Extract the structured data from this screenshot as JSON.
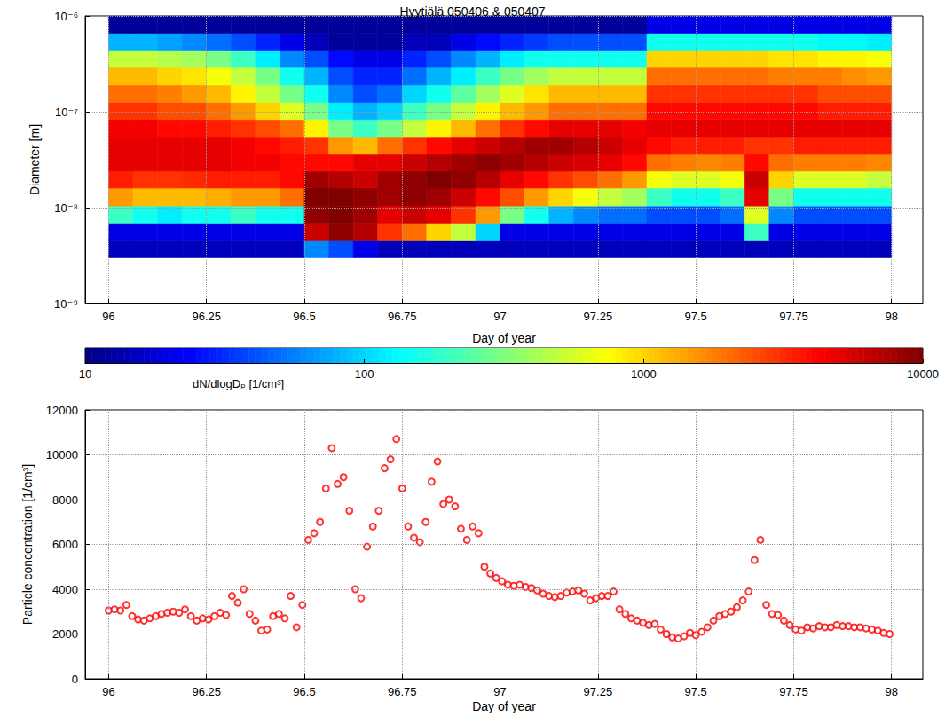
{
  "chart_data": [
    {
      "type": "heatmap",
      "title": "Hyytiälä 050406 & 050407",
      "xlabel": "Day of year",
      "ylabel": "Diameter [m]",
      "log": "y",
      "grid": true,
      "xlim": [
        95.94,
        98.08
      ],
      "xticks": [
        96,
        96.25,
        96.5,
        96.75,
        97,
        97.25,
        97.5,
        97.75,
        98
      ],
      "ylim": [
        1e-09,
        1e-06
      ],
      "yticks": [
        {
          "value": 1e-09,
          "label": "10⁻⁹"
        },
        {
          "value": 1e-08,
          "label": "10⁻⁸"
        },
        {
          "value": 1e-07,
          "label": "10⁻⁷"
        },
        {
          "value": 1e-06,
          "label": "10⁻⁶"
        }
      ],
      "x_edges": [
        96,
        96.0625,
        96.125,
        96.1875,
        96.25,
        96.3125,
        96.375,
        96.4375,
        96.5,
        96.5625,
        96.625,
        96.6875,
        96.75,
        96.8125,
        96.875,
        96.9375,
        97,
        97.0625,
        97.125,
        97.1875,
        97.25,
        97.3125,
        97.375,
        97.4375,
        97.5,
        97.5625,
        97.625,
        97.6875,
        97.75,
        97.8125,
        97.875,
        97.9375,
        98
      ],
      "y_edges": [
        3e-09,
        4.5e-09,
        6.9e-09,
        1.04e-08,
        1.6e-08,
        2.4e-08,
        3.6e-08,
        5.5e-08,
        8.3e-08,
        1.25e-07,
        1.9e-07,
        2.9e-07,
        4.4e-07,
        6.6e-07,
        1e-06
      ],
      "cells": [
        [
          15,
          15,
          15,
          15,
          15,
          15,
          15,
          15,
          60,
          40,
          20,
          15,
          15,
          15,
          15,
          15,
          15,
          15,
          15,
          15,
          15,
          15,
          15,
          15,
          15,
          15,
          15,
          15,
          15,
          15,
          15,
          15
        ],
        [
          20,
          20,
          20,
          20,
          20,
          20,
          20,
          20,
          6000,
          9000,
          7000,
          3000,
          2000,
          1000,
          500,
          100,
          20,
          20,
          20,
          20,
          20,
          20,
          20,
          20,
          20,
          20,
          200,
          20,
          20,
          20,
          20,
          20
        ],
        [
          200,
          150,
          120,
          150,
          150,
          200,
          150,
          150,
          9000,
          10000,
          8000,
          5000,
          6000,
          5000,
          3000,
          1500,
          300,
          150,
          80,
          60,
          50,
          50,
          40,
          40,
          40,
          50,
          600,
          60,
          40,
          40,
          40,
          40
        ],
        [
          1500,
          1200,
          1200,
          1200,
          1300,
          1500,
          1500,
          2000,
          10000,
          10000,
          9000,
          8000,
          9000,
          8000,
          6000,
          4000,
          2500,
          1500,
          1000,
          700,
          500,
          400,
          200,
          150,
          150,
          200,
          5000,
          300,
          150,
          150,
          150,
          150
        ],
        [
          3500,
          3000,
          3000,
          3200,
          3500,
          3500,
          3500,
          4000,
          8000,
          7000,
          6000,
          8000,
          9000,
          10000,
          9000,
          7000,
          5000,
          4000,
          3000,
          2500,
          2000,
          1500,
          700,
          600,
          600,
          700,
          6000,
          1000,
          600,
          600,
          600,
          500
        ],
        [
          5000,
          5000,
          5000,
          5000,
          5000,
          4500,
          4500,
          4000,
          4000,
          4000,
          5000,
          5000,
          6000,
          7000,
          8000,
          9000,
          8000,
          7000,
          6000,
          5500,
          5000,
          4000,
          2000,
          1800,
          1700,
          1800,
          4000,
          2000,
          1800,
          1800,
          1800,
          1700
        ],
        [
          5000,
          5000,
          5000,
          5000,
          5000,
          4500,
          4000,
          3500,
          3000,
          1500,
          1200,
          2000,
          3000,
          4000,
          5000,
          6000,
          7000,
          8000,
          8000,
          7000,
          6000,
          5000,
          4000,
          3500,
          3500,
          3500,
          3000,
          3000,
          3500,
          3500,
          3500,
          3500
        ],
        [
          4500,
          4500,
          4000,
          4000,
          3500,
          3000,
          2500,
          2000,
          800,
          300,
          200,
          300,
          500,
          800,
          1200,
          2000,
          3000,
          4000,
          5000,
          5000,
          5000,
          4500,
          5000,
          5000,
          5000,
          5000,
          5000,
          5000,
          5000,
          5000,
          5000,
          5000
        ],
        [
          3000,
          3000,
          2500,
          2500,
          2000,
          1500,
          1000,
          600,
          300,
          120,
          80,
          100,
          200,
          300,
          500,
          800,
          1200,
          1500,
          2000,
          2000,
          2000,
          2000,
          4000,
          4000,
          4000,
          4000,
          4000,
          4000,
          4000,
          3500,
          3500,
          3500
        ],
        [
          2000,
          2000,
          1800,
          1500,
          1200,
          800,
          500,
          300,
          150,
          60,
          40,
          50,
          100,
          150,
          250,
          400,
          600,
          900,
          1200,
          1200,
          1200,
          1200,
          3000,
          3000,
          3000,
          3000,
          3000,
          3000,
          3000,
          2500,
          2500,
          2500
        ],
        [
          1200,
          1200,
          1000,
          900,
          700,
          500,
          300,
          150,
          80,
          40,
          30,
          30,
          50,
          80,
          120,
          200,
          300,
          400,
          500,
          500,
          500,
          500,
          2000,
          2000,
          2000,
          2000,
          2000,
          1800,
          1800,
          1800,
          1600,
          1500
        ],
        [
          500,
          500,
          450,
          400,
          300,
          200,
          120,
          60,
          40,
          25,
          20,
          20,
          30,
          40,
          60,
          80,
          120,
          150,
          150,
          150,
          150,
          150,
          1000,
          1000,
          1000,
          1000,
          1000,
          900,
          900,
          800,
          800,
          700
        ],
        [
          80,
          80,
          70,
          60,
          50,
          40,
          30,
          20,
          15,
          12,
          12,
          12,
          15,
          15,
          20,
          25,
          30,
          35,
          40,
          40,
          40,
          40,
          150,
          150,
          150,
          150,
          150,
          150,
          150,
          130,
          130,
          120
        ],
        [
          12,
          12,
          12,
          12,
          12,
          12,
          12,
          12,
          12,
          12,
          12,
          12,
          12,
          12,
          12,
          12,
          12,
          12,
          12,
          12,
          12,
          12,
          20,
          20,
          20,
          20,
          20,
          20,
          20,
          20,
          20,
          20
        ]
      ],
      "colorbar": {
        "label": "dN/dlogDₚ [1/cm³]",
        "lim": [
          10,
          10000
        ],
        "ticks": [
          10,
          100,
          1000,
          10000
        ],
        "log": true
      }
    },
    {
      "type": "scatter",
      "xlabel": "Day of year",
      "ylabel": "Particle concentration [1/cm³]",
      "grid": true,
      "color": "#ff0000",
      "marker": "open_circle",
      "xlim": [
        95.94,
        98.08
      ],
      "xticks": [
        96,
        96.25,
        96.5,
        96.75,
        97,
        97.25,
        97.5,
        97.75,
        98
      ],
      "ylim": [
        0,
        12000
      ],
      "yticks": [
        0,
        2000,
        4000,
        6000,
        8000,
        10000,
        12000
      ],
      "x": [
        96,
        96.015,
        96.03,
        96.045,
        96.06,
        96.075,
        96.09,
        96.105,
        96.12,
        96.135,
        96.15,
        96.165,
        96.18,
        96.195,
        96.21,
        96.225,
        96.24,
        96.255,
        96.27,
        96.285,
        96.3,
        96.315,
        96.33,
        96.345,
        96.36,
        96.375,
        96.39,
        96.405,
        96.42,
        96.435,
        96.45,
        96.465,
        96.48,
        96.495,
        96.51,
        96.525,
        96.54,
        96.555,
        96.57,
        96.585,
        96.6,
        96.615,
        96.63,
        96.645,
        96.66,
        96.675,
        96.69,
        96.705,
        96.72,
        96.735,
        96.75,
        96.765,
        96.78,
        96.795,
        96.81,
        96.825,
        96.84,
        96.855,
        96.87,
        96.885,
        96.9,
        96.915,
        96.93,
        96.945,
        96.96,
        96.975,
        96.99,
        97.005,
        97.02,
        97.035,
        97.05,
        97.065,
        97.08,
        97.095,
        97.11,
        97.125,
        97.14,
        97.155,
        97.17,
        97.185,
        97.2,
        97.215,
        97.23,
        97.245,
        97.26,
        97.275,
        97.29,
        97.305,
        97.32,
        97.335,
        97.35,
        97.365,
        97.38,
        97.395,
        97.41,
        97.425,
        97.44,
        97.455,
        97.47,
        97.485,
        97.5,
        97.515,
        97.53,
        97.545,
        97.56,
        97.575,
        97.59,
        97.605,
        97.62,
        97.635,
        97.65,
        97.665,
        97.68,
        97.695,
        97.71,
        97.725,
        97.74,
        97.755,
        97.77,
        97.785,
        97.8,
        97.815,
        97.83,
        97.845,
        97.86,
        97.875,
        97.89,
        97.905,
        97.92,
        97.935,
        97.95,
        97.965,
        97.98,
        97.995
      ],
      "values": [
        3050,
        3100,
        3050,
        3300,
        2800,
        2650,
        2600,
        2700,
        2800,
        2900,
        2950,
        3000,
        2950,
        3100,
        2800,
        2600,
        2700,
        2650,
        2800,
        2950,
        2850,
        3700,
        3400,
        4000,
        2900,
        2600,
        2150,
        2200,
        2800,
        2900,
        2700,
        3700,
        2300,
        3300,
        6200,
        6500,
        7000,
        8500,
        10300,
        8700,
        9000,
        7500,
        4000,
        3600,
        5900,
        6800,
        7500,
        9400,
        9800,
        10700,
        8500,
        6800,
        6300,
        6100,
        7000,
        8800,
        9700,
        7800,
        8000,
        7700,
        6700,
        6200,
        6800,
        6500,
        5000,
        4700,
        4500,
        4350,
        4200,
        4150,
        4200,
        4100,
        4050,
        3950,
        3800,
        3700,
        3650,
        3700,
        3850,
        3900,
        3950,
        3800,
        3500,
        3600,
        3700,
        3700,
        3900,
        3100,
        2900,
        2700,
        2600,
        2500,
        2400,
        2450,
        2200,
        2000,
        1850,
        1800,
        1900,
        2050,
        1950,
        2100,
        2300,
        2600,
        2800,
        2900,
        3000,
        3200,
        3500,
        3900,
        5300,
        6200,
        3300,
        2900,
        2850,
        2600,
        2400,
        2200,
        2150,
        2300,
        2250,
        2350,
        2300,
        2300,
        2400,
        2350,
        2350,
        2300,
        2300,
        2250,
        2200,
        2150,
        2050,
        2000
      ]
    }
  ]
}
